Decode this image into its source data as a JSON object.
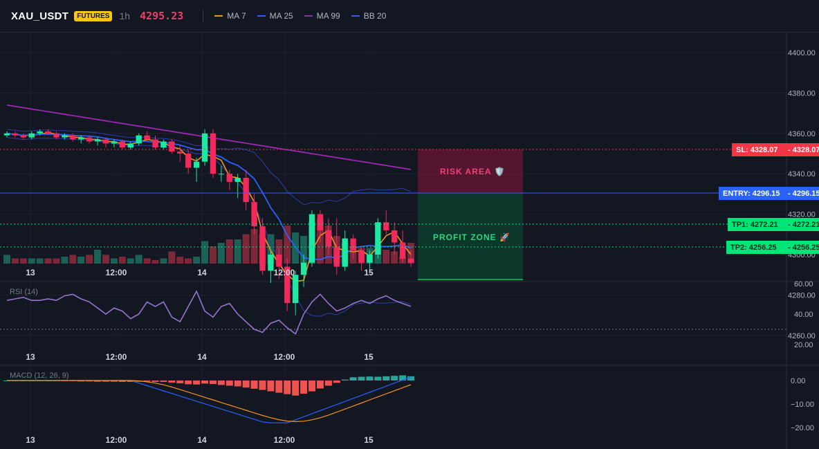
{
  "header": {
    "symbol": "XAU_USDT",
    "badge": "FUTURES",
    "timeframe": "1h",
    "price": "4295.23",
    "legend": [
      {
        "label": "MA 7",
        "color": "#f7931a"
      },
      {
        "label": "MA 25",
        "color": "#2962ff"
      },
      {
        "label": "MA 99",
        "color": "#9c27b0"
      },
      {
        "label": "BB 20",
        "color": "#3d5afe"
      }
    ]
  },
  "price_axis": [
    "4400.00",
    "4380.00",
    "4360.00",
    "4340.00",
    "4320.00",
    "4300.00",
    "4280.00",
    "4260.00"
  ],
  "time_axis": [
    "13",
    "12:00",
    "14",
    "12:00",
    "15"
  ],
  "levels": {
    "sl": {
      "label": "SL: 4328.07",
      "value": "4328.07",
      "color": "#f23645"
    },
    "entry": {
      "label": "ENTRY: 4296.15",
      "value": "4296.15",
      "color": "#2962ff"
    },
    "tp1": {
      "label": "TP1: 4272.21",
      "value": "4272.21",
      "color": "#00e676"
    },
    "tp2": {
      "label": "TP2: 4256.25",
      "value": "4256.25",
      "color": "#00e676"
    }
  },
  "zones": {
    "risk": "RISK AREA 🛡️",
    "profit": "PROFIT ZONE 🚀"
  },
  "rsi": {
    "title": "RSI (14)",
    "axis": [
      "60.00",
      "40.00",
      "20.00"
    ]
  },
  "macd": {
    "title": "MACD (12, 26, 9)",
    "axis": [
      "0.00",
      "−10.00",
      "−20.00"
    ]
  },
  "chart_data": {
    "type": "candlestick",
    "candles": [
      [
        4359,
        4361,
        4358,
        4360
      ],
      [
        4360,
        4361,
        4358,
        4359
      ],
      [
        4359,
        4360,
        4357,
        4358
      ],
      [
        4358,
        4361,
        4357,
        4360
      ],
      [
        4360,
        4362,
        4359,
        4361
      ],
      [
        4361,
        4362,
        4359,
        4360
      ],
      [
        4360,
        4361,
        4357,
        4358
      ],
      [
        4358,
        4360,
        4357,
        4359
      ],
      [
        4359,
        4360,
        4356,
        4357
      ],
      [
        4357,
        4359,
        4355,
        4358
      ],
      [
        4358,
        4359,
        4355,
        4356
      ],
      [
        4356,
        4358,
        4354,
        4357
      ],
      [
        4357,
        4358,
        4353,
        4355
      ],
      [
        4355,
        4357,
        4353,
        4356
      ],
      [
        4356,
        4357,
        4352,
        4353
      ],
      [
        4353,
        4356,
        4352,
        4355
      ],
      [
        4355,
        4360,
        4354,
        4359
      ],
      [
        4359,
        4361,
        4356,
        4357
      ],
      [
        4357,
        4359,
        4352,
        4353
      ],
      [
        4353,
        4357,
        4352,
        4356
      ],
      [
        4356,
        4357,
        4350,
        4351
      ],
      [
        4351,
        4354,
        4346,
        4350
      ],
      [
        4350,
        4352,
        4340,
        4343
      ],
      [
        4343,
        4348,
        4336,
        4346
      ],
      [
        4346,
        4362,
        4344,
        4360
      ],
      [
        4360,
        4362,
        4338,
        4340
      ],
      [
        4340,
        4344,
        4336,
        4340
      ],
      [
        4340,
        4342,
        4332,
        4336
      ],
      [
        4336,
        4340,
        4328,
        4338
      ],
      [
        4338,
        4342,
        4322,
        4326
      ],
      [
        4326,
        4330,
        4310,
        4314
      ],
      [
        4314,
        4318,
        4290,
        4292
      ],
      [
        4292,
        4302,
        4286,
        4300
      ],
      [
        4300,
        4304,
        4288,
        4294
      ],
      [
        4294,
        4298,
        4272,
        4276
      ],
      [
        4276,
        4292,
        4270,
        4290
      ],
      [
        4290,
        4300,
        4284,
        4296
      ],
      [
        4296,
        4322,
        4294,
        4320
      ],
      [
        4320,
        4322,
        4306,
        4312
      ],
      [
        4312,
        4318,
        4300,
        4304
      ],
      [
        4304,
        4318,
        4290,
        4294
      ],
      [
        4294,
        4312,
        4292,
        4308
      ],
      [
        4308,
        4310,
        4298,
        4302
      ],
      [
        4302,
        4304,
        4292,
        4296
      ],
      [
        4296,
        4302,
        4292,
        4300
      ],
      [
        4300,
        4318,
        4298,
        4316
      ],
      [
        4316,
        4322,
        4310,
        4312
      ],
      [
        4312,
        4316,
        4300,
        4306
      ],
      [
        4306,
        4312,
        4296,
        4298
      ],
      [
        4298,
        4302,
        4294,
        4296
      ]
    ],
    "volume": [
      5,
      3,
      3,
      3,
      3,
      3,
      3,
      4,
      5,
      4,
      5,
      8,
      5,
      3,
      4,
      3,
      5,
      3,
      2,
      3,
      7,
      4,
      3,
      4,
      13,
      10,
      12,
      14,
      14,
      17,
      20,
      17,
      17,
      14,
      22,
      18,
      16,
      24,
      26,
      22,
      16,
      12,
      10,
      9,
      9,
      10,
      8,
      7,
      4,
      12
    ],
    "rsi": [
      49,
      50,
      51,
      49,
      49,
      50,
      49,
      52,
      53,
      50,
      48,
      44,
      40,
      44,
      42,
      37,
      40,
      48,
      45,
      48,
      38,
      35,
      45,
      55,
      42,
      38,
      45,
      47,
      40,
      35,
      30,
      28,
      34,
      36,
      31,
      27,
      40,
      48,
      53,
      47,
      42,
      44,
      47,
      49,
      47,
      50,
      52,
      49,
      47,
      45
    ],
    "macd_hist": [
      0,
      0,
      0,
      0,
      0,
      0,
      0,
      -0.3,
      -0.3,
      -0.4,
      -0.4,
      -0.5,
      -0.5,
      -0.5,
      -0.6,
      -0.6,
      -0.5,
      -0.4,
      -0.6,
      -0.6,
      -0.9,
      -1.2,
      -1.6,
      -1.7,
      -1.3,
      -1.5,
      -1.9,
      -2.2,
      -2.5,
      -3.0,
      -3.5,
      -4.0,
      -4.6,
      -5.2,
      -5.8,
      -6.4,
      -5.6,
      -4.6,
      -3.4,
      -2.2,
      -1.0,
      0.4,
      1.4,
      1.6,
      1.7,
      1.6,
      1.8,
      2.0,
      2.2,
      1.8
    ]
  }
}
